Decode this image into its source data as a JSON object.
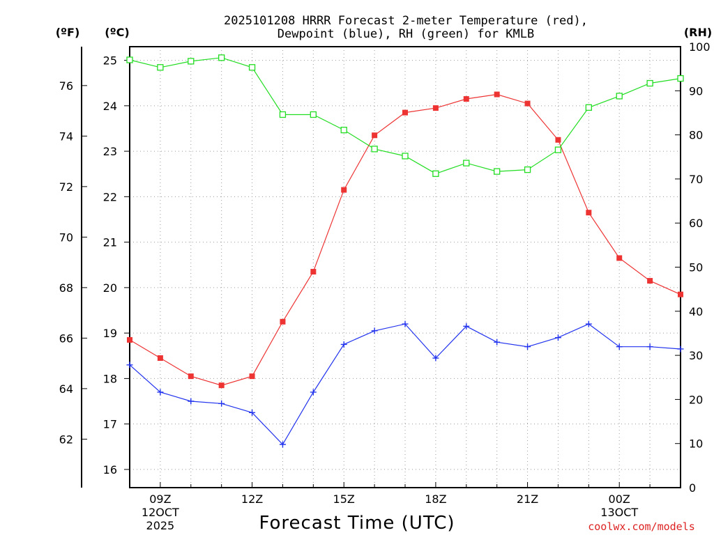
{
  "chart_data": {
    "type": "line",
    "title_line1": "2025101208 HRRR Forecast 2-meter Temperature (red),",
    "title_line2": "Dewpoint (blue), RH (green) for KMLB",
    "xlabel": "Forecast Time (UTC)",
    "credit": "coolwx.com/models",
    "unit_f": "(ºF)",
    "unit_c": "(ºC)",
    "unit_rh": "(RH)",
    "x": [
      8,
      9,
      10,
      11,
      12,
      13,
      14,
      15,
      16,
      17,
      18,
      19,
      20,
      21,
      22,
      23,
      24,
      25,
      26
    ],
    "xlim": [
      8,
      26
    ],
    "x_ticks": [
      {
        "x": 9,
        "label": "09Z",
        "sub1": "12OCT",
        "sub2": "2025"
      },
      {
        "x": 12,
        "label": "12Z",
        "sub1": "",
        "sub2": ""
      },
      {
        "x": 15,
        "label": "15Z",
        "sub1": "",
        "sub2": ""
      },
      {
        "x": 18,
        "label": "18Z",
        "sub1": "",
        "sub2": ""
      },
      {
        "x": 21,
        "label": "21Z",
        "sub1": "",
        "sub2": ""
      },
      {
        "x": 24,
        "label": "00Z",
        "sub1": "13OCT",
        "sub2": ""
      }
    ],
    "celsius_axis": {
      "min": 15.6,
      "max": 25.3,
      "ticks": [
        "16",
        "17",
        "18",
        "19",
        "20",
        "21",
        "22",
        "23",
        "24",
        "25"
      ]
    },
    "fahrenheit_axis": {
      "min": 60.08,
      "max": 77.54,
      "ticks": [
        "62",
        "64",
        "66",
        "68",
        "70",
        "72",
        "74",
        "76"
      ]
    },
    "rh_axis": {
      "min": 0,
      "max": 100,
      "ticks": [
        "0",
        "10",
        "20",
        "30",
        "40",
        "50",
        "60",
        "70",
        "80",
        "90",
        "100"
      ]
    },
    "series": [
      {
        "name": "Temperature",
        "units": "C",
        "color": "#ee3333",
        "marker": "filled-square",
        "values": [
          18.85,
          18.45,
          18.05,
          17.85,
          18.05,
          19.25,
          20.35,
          22.15,
          23.35,
          23.85,
          23.95,
          24.15,
          24.25,
          24.05,
          23.25,
          21.65,
          20.65,
          20.15,
          19.85
        ]
      },
      {
        "name": "Dewpoint",
        "units": "C",
        "color": "#2233ee",
        "marker": "plus",
        "values": [
          18.3,
          17.7,
          17.5,
          17.45,
          17.25,
          16.55,
          17.7,
          18.75,
          19.05,
          19.2,
          18.45,
          19.15,
          18.8,
          18.7,
          18.9,
          19.2,
          18.7,
          18.7,
          18.65
        ]
      },
      {
        "name": "RH",
        "units": "%",
        "color": "#22dd22",
        "marker": "open-square",
        "values": [
          97,
          95.3,
          96.7,
          97.5,
          95.3,
          84.6,
          84.6,
          81.1,
          76.8,
          75.2,
          71.2,
          73.6,
          71.7,
          72.1,
          76.6,
          86.2,
          88.8,
          91.7,
          92.8
        ]
      }
    ]
  }
}
